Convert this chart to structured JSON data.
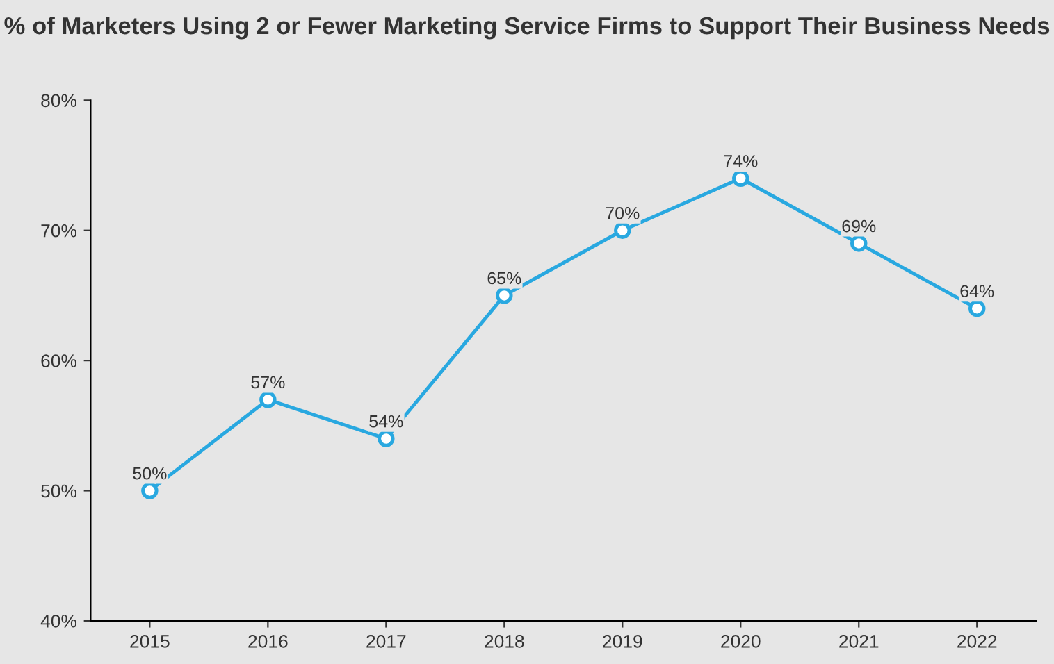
{
  "chart_data": {
    "type": "line",
    "title": "% of Marketers Using 2 or Fewer Marketing Service Firms to Support Their Business Needs",
    "categories": [
      "2015",
      "2016",
      "2017",
      "2018",
      "2019",
      "2020",
      "2021",
      "2022"
    ],
    "series": [
      {
        "color": "#29a8e0",
        "values": [
          50,
          57,
          54,
          65,
          70,
          74,
          69,
          64
        ],
        "value_labels": [
          "50%",
          "57%",
          "54%",
          "65%",
          "70%",
          "74%",
          "69%",
          "64%"
        ]
      }
    ],
    "ylim": [
      40,
      80
    ],
    "yticks": [
      {
        "value": 40,
        "label": "40%"
      },
      {
        "value": 50,
        "label": "50%"
      },
      {
        "value": 60,
        "label": "60%"
      },
      {
        "value": 70,
        "label": "70%"
      },
      {
        "value": 80,
        "label": "80%"
      }
    ],
    "grid": false,
    "legend": false,
    "marker": "circle",
    "line_style": "solid"
  }
}
